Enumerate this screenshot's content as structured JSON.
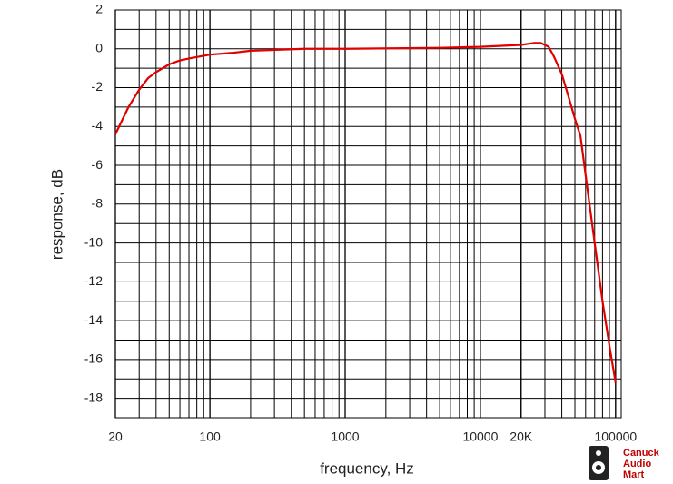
{
  "chart_data": {
    "type": "line",
    "x_label": "frequency, Hz",
    "y_label": "response, dB",
    "log_x": true,
    "grid": true,
    "xlim": [
      20,
      110000
    ],
    "ylim": [
      -19,
      2
    ],
    "xticks": [
      20,
      100,
      1000,
      10000,
      {
        "value": 20000,
        "label": "20K"
      },
      100000
    ],
    "yticks": [
      2,
      0,
      -2,
      -4,
      -6,
      -8,
      -10,
      -12,
      -14,
      -16,
      -18
    ],
    "x": [
      20,
      25,
      30,
      35,
      40,
      50,
      60,
      70,
      100,
      150,
      200,
      500,
      1000,
      5000,
      10000,
      20000,
      25000,
      28000,
      32000,
      35000,
      40000,
      45000,
      50000,
      55000,
      60000,
      70000,
      80000,
      90000,
      100000
    ],
    "series": [
      {
        "color": "#e00000",
        "values": [
          -4.4,
          -3.0,
          -2.1,
          -1.5,
          -1.2,
          -0.8,
          -0.6,
          -0.5,
          -0.3,
          -0.2,
          -0.1,
          0,
          0,
          0.05,
          0.1,
          0.2,
          0.3,
          0.3,
          0.1,
          -0.4,
          -1.3,
          -2.5,
          -3.6,
          -4.5,
          -6.5,
          -10,
          -13,
          -15.3,
          -17.2
        ]
      }
    ],
    "watermark": [
      "Canuck",
      "Audio",
      "Mart"
    ]
  }
}
